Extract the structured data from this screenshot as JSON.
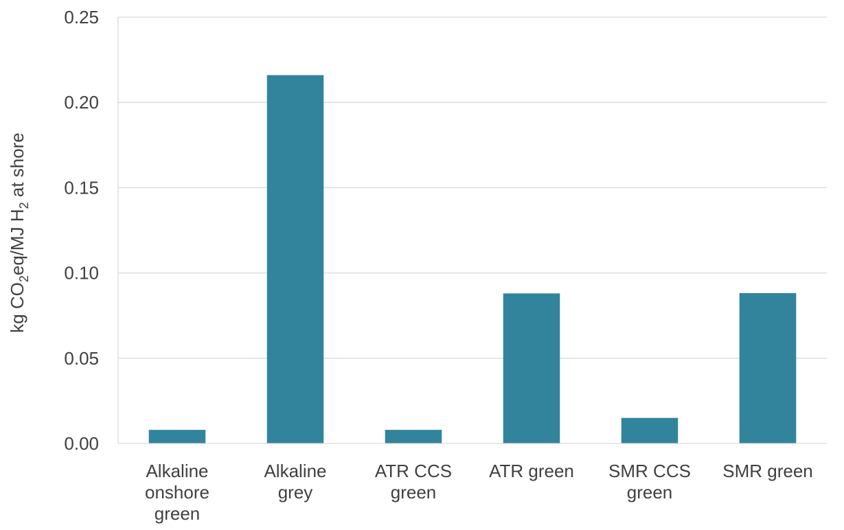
{
  "chart_data": {
    "type": "bar",
    "ylabel": {
      "prefix": "kg CO",
      "sub1": "2",
      "middle": "eq/MJ H",
      "sub2": "2",
      "suffix": " at shore"
    },
    "categories": [
      [
        "Alkaline",
        "onshore",
        "green"
      ],
      [
        "Alkaline",
        "grey"
      ],
      [
        "ATR CCS",
        "green"
      ],
      [
        "ATR green"
      ],
      [
        "SMR CCS",
        "green"
      ],
      [
        "SMR green"
      ]
    ],
    "values": [
      0.008,
      0.216,
      0.008,
      0.088,
      0.015,
      0.0882
    ],
    "ylim": [
      0,
      0.25
    ],
    "yticks": [
      0,
      0.05,
      0.1,
      0.15,
      0.2,
      0.25
    ],
    "ytick_labels": [
      "0.00",
      "0.05",
      "0.10",
      "0.15",
      "0.20",
      "0.25"
    ],
    "grid": true,
    "legend": "none",
    "colors": {
      "bar": "#31849b",
      "grid": "#d9d9d9",
      "text": "#404040"
    }
  }
}
